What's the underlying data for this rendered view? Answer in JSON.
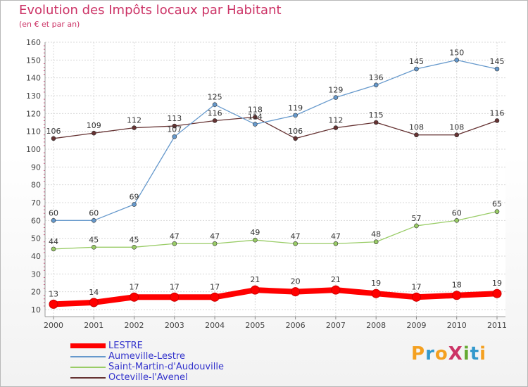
{
  "chart_data": {
    "type": "line",
    "title": "Evolution des Impôts locaux par Habitant",
    "subtitle": "(en € et par an)",
    "x": [
      "2000",
      "2001",
      "2002",
      "2003",
      "2004",
      "2005",
      "2006",
      "2007",
      "2008",
      "2009",
      "2010",
      "2011"
    ],
    "ylim": [
      10,
      160
    ],
    "yticks": [
      "10",
      "20",
      "30",
      "40",
      "50",
      "60",
      "70",
      "80",
      "90",
      "100",
      "110",
      "120",
      "130",
      "140",
      "150",
      "160"
    ],
    "grid": true,
    "series": [
      {
        "name": "LESTRE",
        "color": "#ff0000",
        "values": [
          13,
          14,
          17,
          17,
          17,
          21,
          20,
          21,
          19,
          17,
          18,
          19
        ]
      },
      {
        "name": "Aumeville-Lestre",
        "color": "#6699cc",
        "values": [
          60,
          60,
          69,
          107,
          125,
          114,
          119,
          129,
          136,
          145,
          150,
          145
        ]
      },
      {
        "name": "Saint-Martin-d'Audouville",
        "color": "#99cc66",
        "values": [
          44,
          45,
          45,
          47,
          47,
          49,
          47,
          47,
          48,
          57,
          60,
          65
        ]
      },
      {
        "name": "Octeville-l'Avenel",
        "color": "#663333",
        "values": [
          106,
          109,
          112,
          113,
          116,
          118,
          106,
          112,
          115,
          108,
          108,
          116
        ]
      }
    ]
  },
  "legend": [
    "LESTRE",
    "Aumeville-Lestre",
    "Saint-Martin-d'Audouville",
    "Octeville-l'Avenel"
  ],
  "logo": {
    "text": "ProXiti",
    "letters": [
      "P",
      "r",
      "o",
      "X",
      "i",
      "t",
      "i"
    ]
  }
}
